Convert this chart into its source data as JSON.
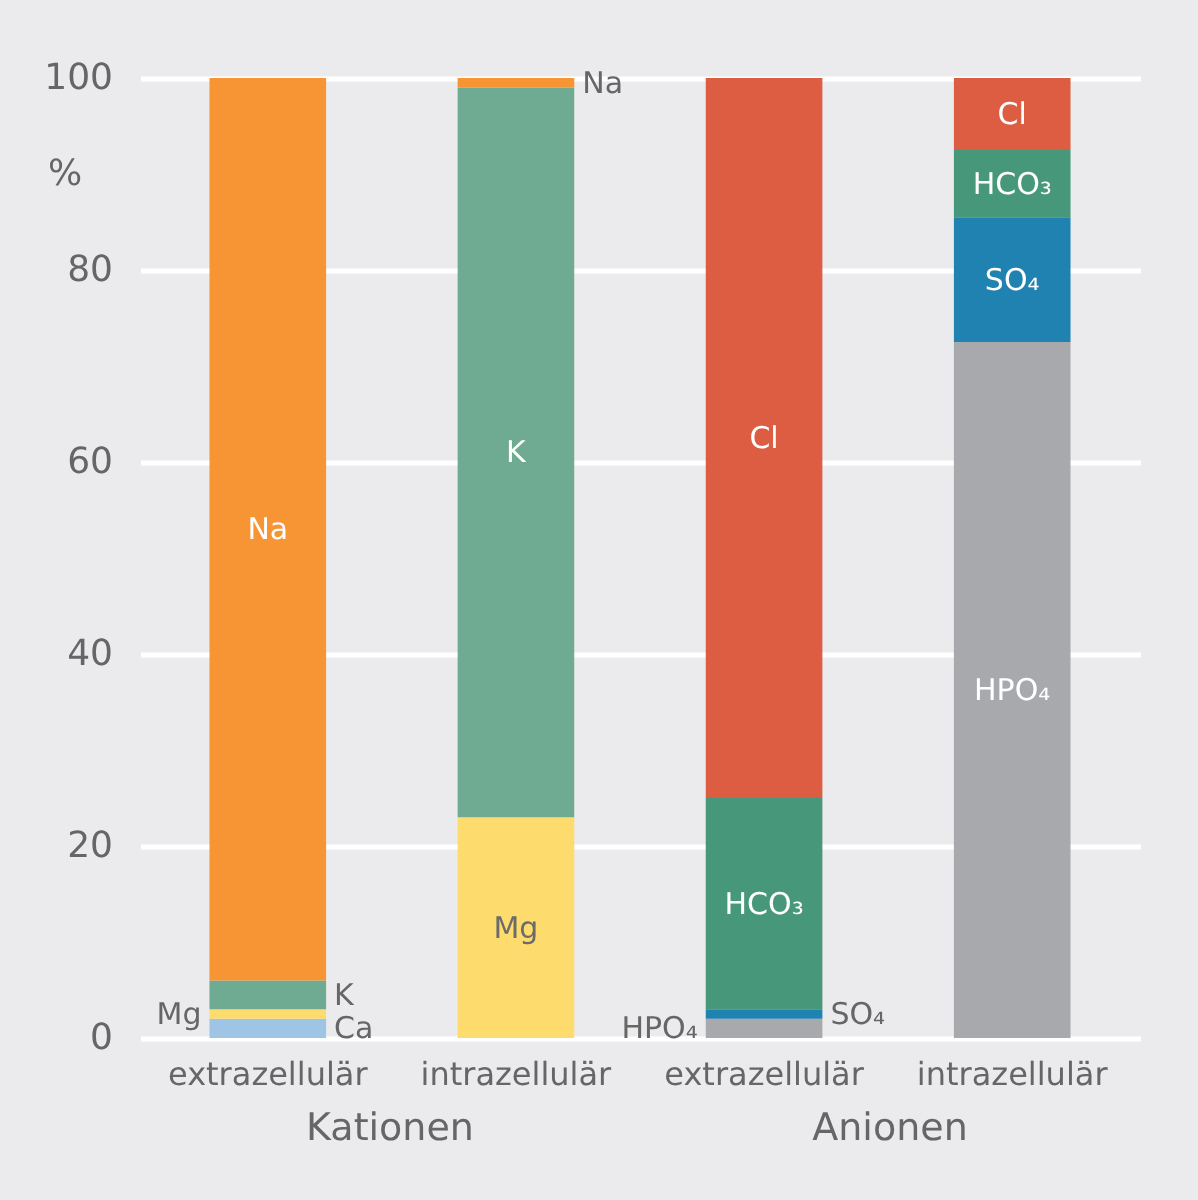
{
  "chart_data": {
    "type": "bar",
    "stacked": true,
    "ylabel": "%",
    "categories": [
      "extrazellulär",
      "intrazellulär",
      "extrazellulär",
      "intrazellulär"
    ],
    "series": [
      {
        "name": "Ca",
        "color": "#9ec5e6",
        "values": [
          2,
          null,
          null,
          null
        ]
      },
      {
        "name": "Mg",
        "color": "#fddb6d",
        "values": [
          1,
          23,
          null,
          null
        ]
      },
      {
        "name": "K",
        "color": "#6fab93",
        "values": [
          3,
          76,
          null,
          null
        ]
      },
      {
        "name": "Na",
        "color": "#f79433",
        "values": [
          94,
          1,
          null,
          null
        ]
      },
      {
        "name": "HPO₄",
        "color": "#a8a9ad",
        "values": [
          null,
          null,
          2,
          72.5
        ]
      },
      {
        "name": "SO₄",
        "color": "#2082b0",
        "values": [
          null,
          null,
          1,
          13
        ]
      },
      {
        "name": "HCO₃",
        "color": "#47977a",
        "values": [
          null,
          null,
          22,
          7
        ]
      },
      {
        "name": "Cl",
        "color": "#dc5d41",
        "values": [
          null,
          null,
          75,
          7.5
        ]
      }
    ],
    "ylim": [
      0,
      100
    ],
    "yticks": [
      0,
      20,
      40,
      60,
      80,
      100
    ],
    "grid": "y",
    "annotations": [
      "Kationen",
      "Anionen"
    ]
  }
}
